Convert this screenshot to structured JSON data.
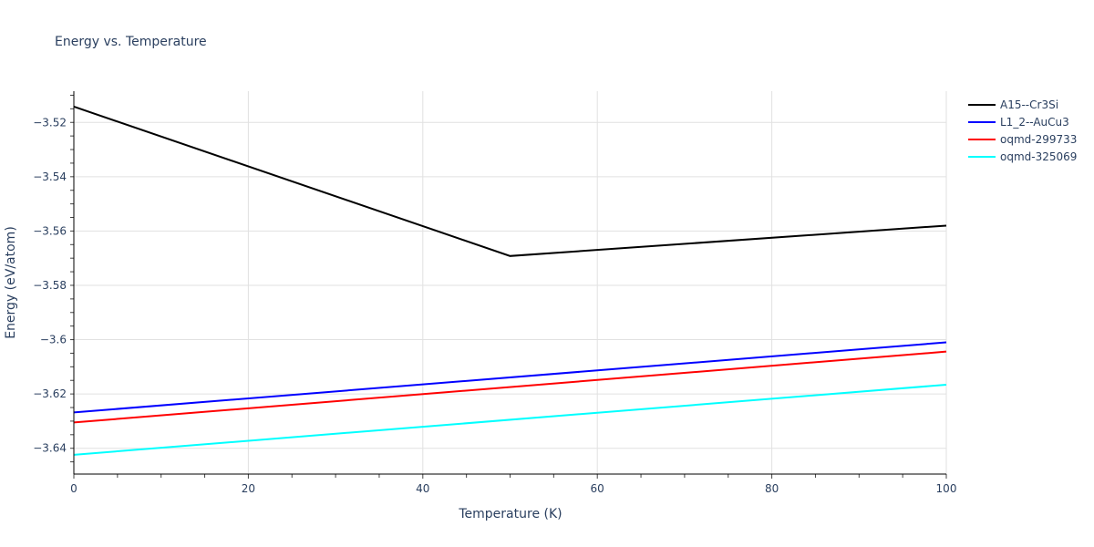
{
  "chart_data": {
    "type": "line",
    "title": "Energy vs. Temperature",
    "xlabel": "Temperature (K)",
    "ylabel": "Energy (eV/atom)",
    "xlim": [
      0,
      100
    ],
    "ylim": [
      -3.6495,
      -3.5085
    ],
    "x_ticks": [
      0,
      20,
      40,
      60,
      80,
      100
    ],
    "x_tick_labels": [
      "0",
      "20",
      "40",
      "60",
      "80",
      "100"
    ],
    "y_ticks": [
      -3.52,
      -3.54,
      -3.56,
      -3.58,
      -3.6,
      -3.62,
      -3.64
    ],
    "y_tick_labels": [
      "−3.52",
      "−3.54",
      "−3.56",
      "−3.58",
      "−3.6",
      "−3.62",
      "−3.64"
    ],
    "grid": true,
    "legend_position": "right-top",
    "series": [
      {
        "name": "A15--Cr3Si",
        "color": "#000000",
        "x": [
          0,
          50,
          100
        ],
        "y": [
          -3.5142,
          -3.5692,
          -3.558
        ]
      },
      {
        "name": "L1_2--AuCu3",
        "color": "#0000ff",
        "x": [
          0,
          100
        ],
        "y": [
          -3.6268,
          -3.601
        ]
      },
      {
        "name": "oqmd-299733",
        "color": "#ff0000",
        "x": [
          0,
          100
        ],
        "y": [
          -3.6305,
          -3.6044
        ]
      },
      {
        "name": "oqmd-325069",
        "color": "#00ffff",
        "x": [
          0,
          100
        ],
        "y": [
          -3.6424,
          -3.6166
        ]
      }
    ]
  }
}
